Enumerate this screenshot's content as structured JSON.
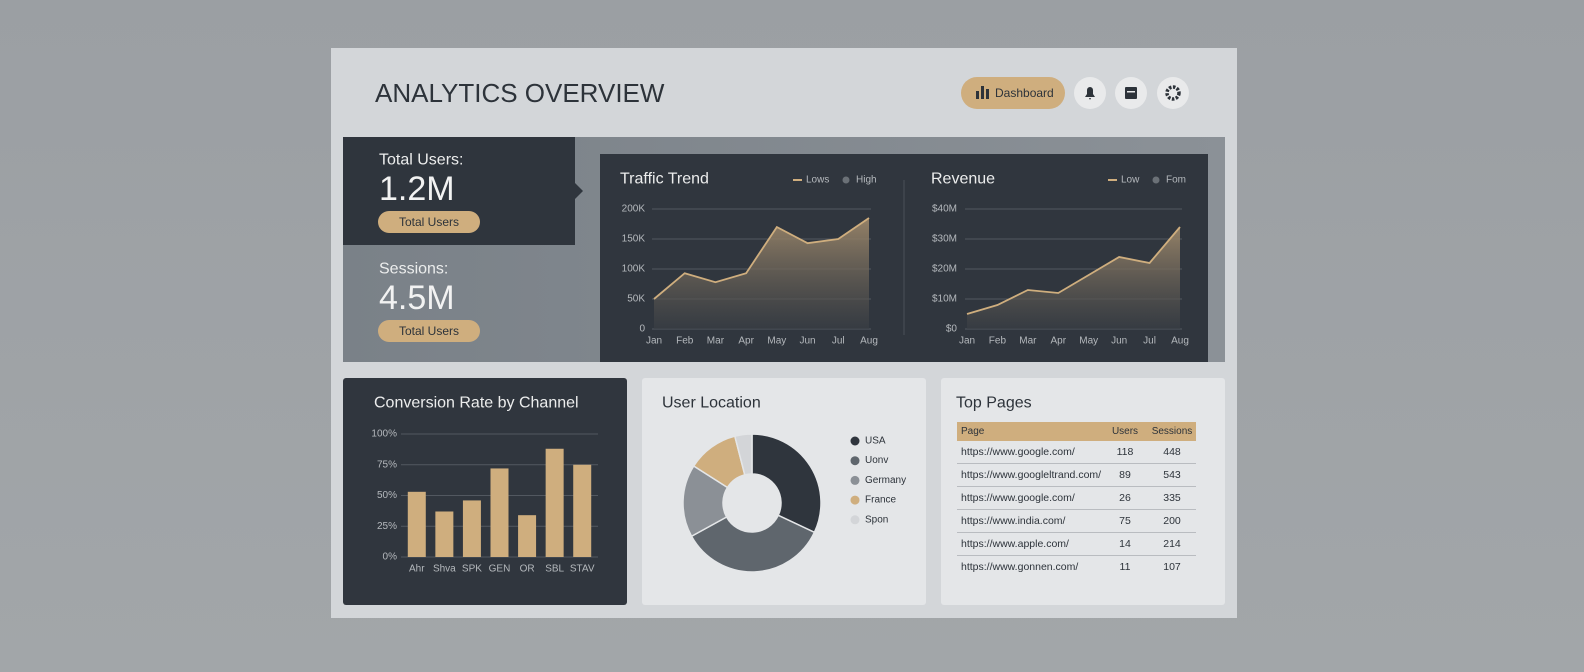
{
  "header": {
    "title": "ANALYTICS OVERVIEW",
    "button": "Dashboard"
  },
  "kpis": [
    {
      "label": "Total Users:",
      "value": "1.2M",
      "button": "Total Users"
    },
    {
      "label": "Sessions:",
      "value": "4.5M",
      "button": "Total Users"
    }
  ],
  "chart_data": [
    {
      "type": "line",
      "title": "Traffic Trend",
      "categories": [
        "Jan",
        "Feb",
        "Mar",
        "Apr",
        "May",
        "Jun",
        "Jul",
        "Aug"
      ],
      "legend": [
        {
          "name": "Lows",
          "color": "#cfae7e"
        },
        {
          "name": "High",
          "color": "#6b7177"
        }
      ],
      "series": [
        {
          "name": "Lows",
          "color": "#cfae7e",
          "values": [
            50000,
            93000,
            78000,
            93000,
            170000,
            143000,
            150000,
            185000
          ]
        }
      ],
      "ylim": [
        0,
        200000
      ],
      "yticks": [
        0,
        {
          "value": 50000,
          "label": "50K"
        },
        {
          "value": 100000,
          "label": "100K"
        },
        {
          "value": 150000,
          "label": "150K"
        },
        {
          "value": 200000,
          "label": "200K"
        }
      ],
      "grid": true
    },
    {
      "type": "line",
      "title": "Revenue",
      "categories": [
        "Jan",
        "Feb",
        "Mar",
        "Apr",
        "May",
        "Jun",
        "Jul",
        "Aug"
      ],
      "legend": [
        {
          "name": "Low",
          "color": "#cfae7e"
        },
        {
          "name": "Fom",
          "color": "#6b7177"
        }
      ],
      "series": [
        {
          "name": "Low",
          "color": "#cfae7e",
          "values": [
            5000000,
            8000000,
            13000000,
            12000000,
            18000000,
            24000000,
            22000000,
            34000000
          ]
        }
      ],
      "ylim": [
        0,
        40000000
      ],
      "yticks": [
        {
          "value": 0,
          "label": "$0"
        },
        {
          "value": 10000000,
          "label": "$10M"
        },
        {
          "value": 20000000,
          "label": "$20M"
        },
        {
          "value": 30000000,
          "label": "$30M"
        },
        {
          "value": 40000000,
          "label": "$40M"
        }
      ],
      "grid": true
    },
    {
      "type": "bar",
      "title": "Conversion Rate by Channel",
      "categories": [
        "Ahr",
        "Shva",
        "SPK",
        "GEN",
        "OR",
        "SBL",
        "STAV"
      ],
      "values": [
        53,
        37,
        46,
        72,
        34,
        88,
        75
      ],
      "color": "#cfae7e",
      "ylim": [
        0,
        100
      ],
      "yticks": [
        {
          "value": 0,
          "label": "0%"
        },
        {
          "value": 25,
          "label": "25%"
        },
        {
          "value": 50,
          "label": "50%"
        },
        {
          "value": 75,
          "label": "75%"
        },
        {
          "value": 100,
          "label": "100%"
        }
      ],
      "grid": true
    },
    {
      "type": "pie",
      "title": "User Location",
      "categories": [
        "USA",
        "Uonv",
        "Germany",
        "France",
        "Spon"
      ],
      "values": [
        32,
        35,
        17,
        12,
        4
      ],
      "colors": [
        "#2f353d",
        "#5f666d",
        "#8b9096",
        "#cfae7e",
        "#d3d5d8"
      ]
    }
  ],
  "table": {
    "title": "Top Pages",
    "columns": [
      "Page",
      "Users",
      "Sessions"
    ],
    "rows": [
      [
        "https://www.google.com/",
        118,
        448
      ],
      [
        "https://www.googleltrand.com/",
        89,
        543
      ],
      [
        "https://www.google.com/",
        26,
        335
      ],
      [
        "https://www.india.com/",
        75,
        200
      ],
      [
        "https://www.apple.com/",
        14,
        214
      ],
      [
        "https://www.gonnen.com/",
        11,
        107
      ]
    ]
  }
}
